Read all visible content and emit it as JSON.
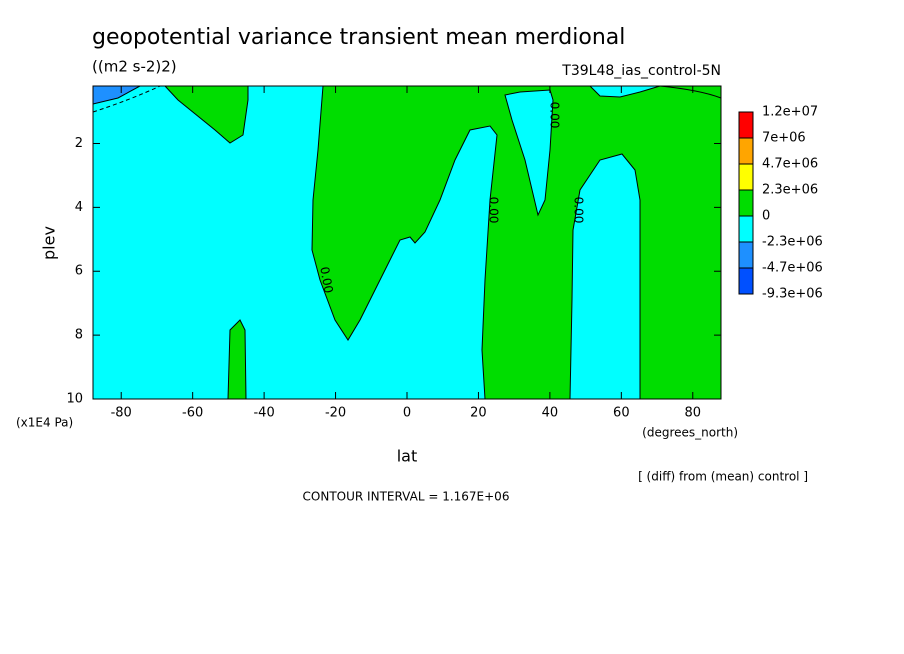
{
  "chart_data": {
    "type": "contour",
    "title": "geopotential variance transient mean merdional",
    "subtitle": "((m2 s-2)2)",
    "experiment": "T39L48_ias_control-5N",
    "x_label": "lat",
    "x_unit": "(degrees_north)",
    "y_label": "plev",
    "y_unit": "(x1E4 Pa)",
    "note": "[ (diff) from (mean) control ]",
    "contour_interval": "CONTOUR INTERVAL = 1.167E+06",
    "contour_labels": [
      "0.00",
      "0.00",
      "0.00",
      "0.00"
    ],
    "xlim": [
      -87.9,
      87.9
    ],
    "xticks": [
      -80,
      -60,
      -40,
      -20,
      0,
      20,
      40,
      60,
      80
    ],
    "ylim": [
      0.2,
      10
    ],
    "yticks": [
      2,
      4,
      6,
      8,
      10
    ],
    "levels": [
      {
        "value": 12000000,
        "label": "1.2e+07"
      },
      {
        "value": 7000000,
        "label": "7e+06"
      },
      {
        "value": 4700000,
        "label": "4.7e+06"
      },
      {
        "value": 2300000,
        "label": "2.3e+06"
      },
      0,
      {
        "value": -2300000,
        "label": "-2.3e+06"
      },
      {
        "value": -4700000,
        "label": "-4.7e+06"
      },
      {
        "value": -9300000,
        "label": "-9.3e+06"
      }
    ],
    "colors": [
      "#ff0000",
      "#ffa500",
      "#ffff00",
      "#00dd00",
      "#00ffff",
      "#1e90ff",
      "#0050ff"
    ]
  }
}
